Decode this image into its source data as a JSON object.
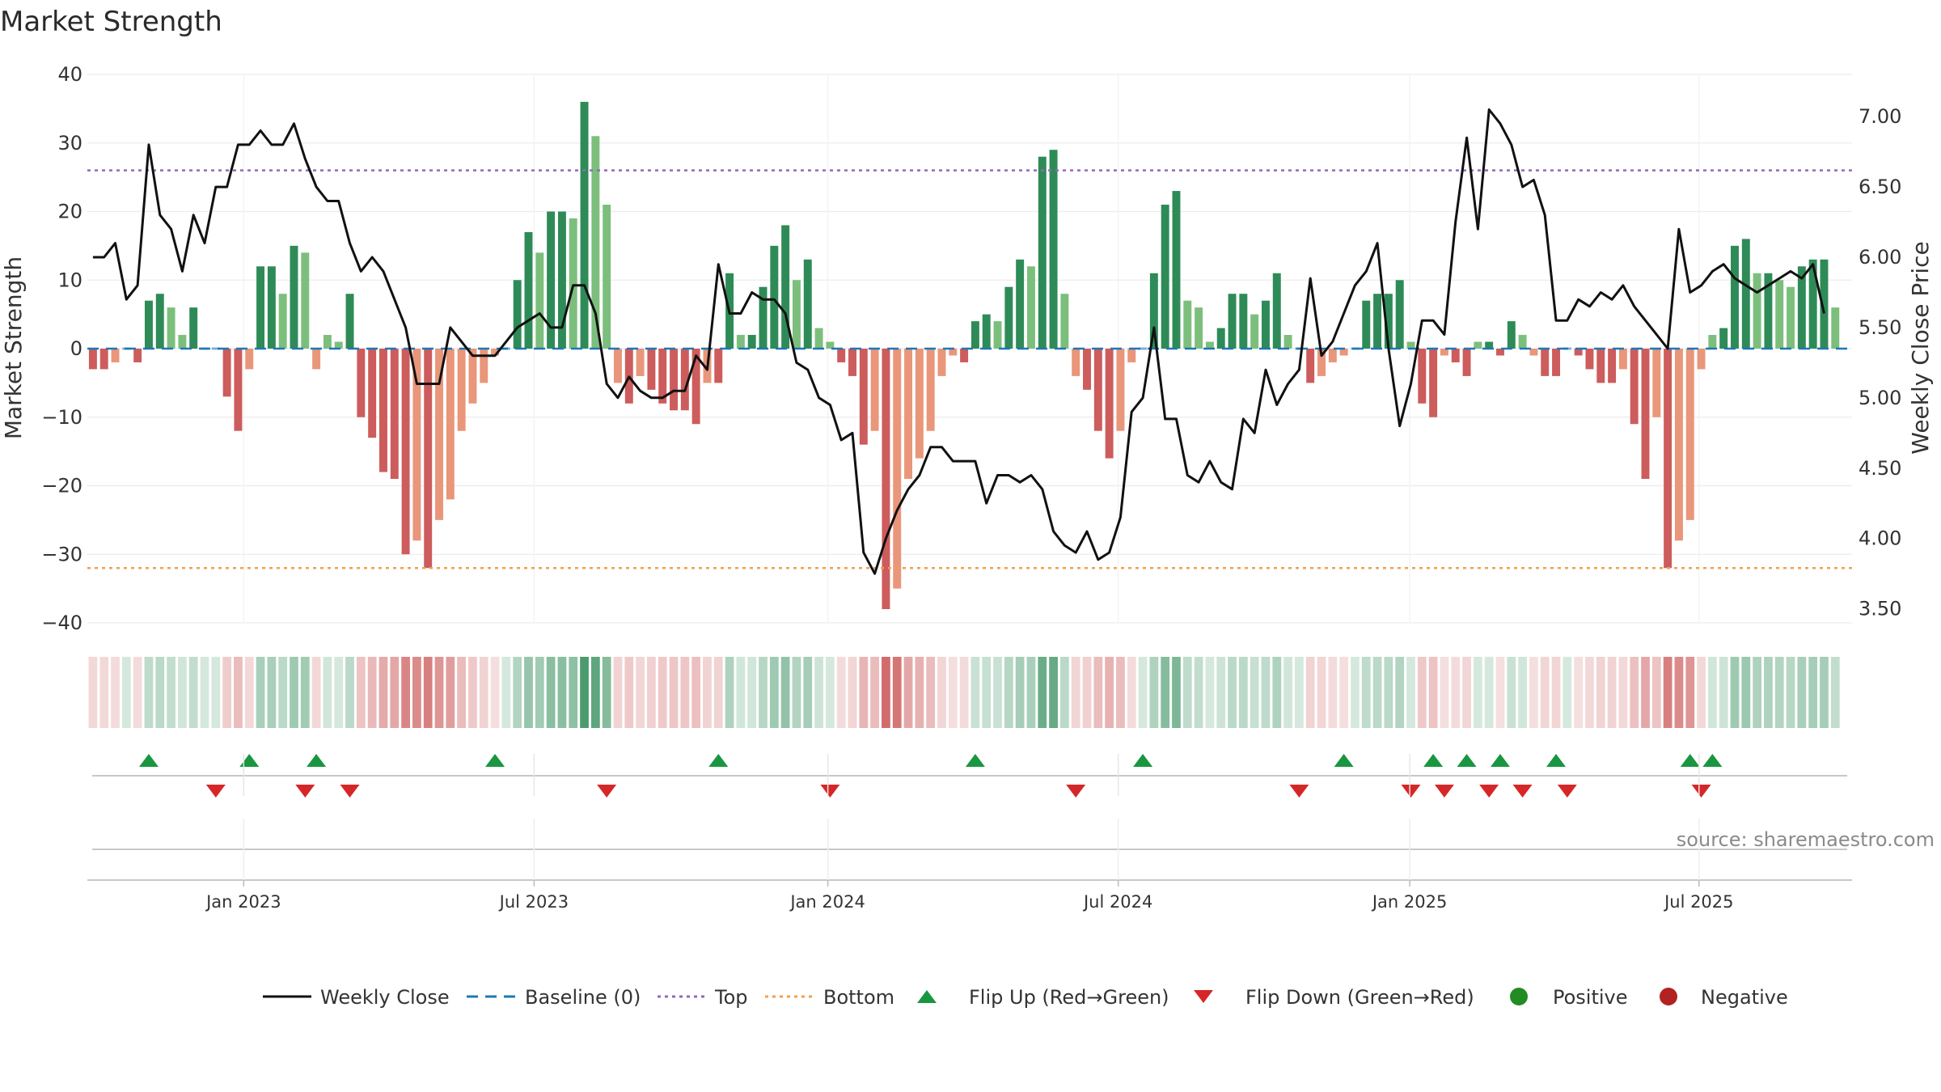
{
  "chart_data": {
    "type": "bar",
    "title": "Market Strength",
    "ylabel": "Market Strength",
    "y2label": "Weekly Close Price",
    "ylim": [
      -40,
      40
    ],
    "y2lim": [
      3.4,
      7.3
    ],
    "yticks": [
      40,
      30,
      20,
      10,
      0,
      -10,
      -20,
      -30,
      -40
    ],
    "y2ticks": [
      "7.00",
      "6.50",
      "6.00",
      "5.50",
      "5.00",
      "4.50",
      "4.00",
      "3.50"
    ],
    "y2tick_values": [
      7.0,
      6.5,
      6.0,
      5.5,
      5.0,
      4.5,
      4.0,
      3.5
    ],
    "x_start": "2022-09-25",
    "weeks": 158,
    "xticks": [
      "Jan 2023",
      "Jul 2023",
      "Jan 2024",
      "Jul 2024",
      "Jan 2025",
      "Jul 2025"
    ],
    "xtick_weeks": [
      14,
      40,
      66.3,
      92.3,
      118.4,
      144.3
    ],
    "top_level": 26,
    "bottom_level": -32,
    "strength": [
      -3,
      -3,
      -2,
      0,
      -2,
      7,
      8,
      6,
      2,
      6,
      0,
      0,
      -7,
      -12,
      -3,
      12,
      12,
      8,
      15,
      14,
      -3,
      2,
      1,
      8,
      -10,
      -13,
      -18,
      -19,
      -30,
      -28,
      -32,
      -25,
      -22,
      -12,
      -8,
      -5,
      -1,
      0,
      10,
      17,
      14,
      20,
      20,
      19,
      36,
      31,
      21,
      -5,
      -8,
      -4,
      -6,
      -8,
      -9,
      -9,
      -11,
      -5,
      -5,
      11,
      2,
      2,
      9,
      15,
      18,
      10,
      13,
      3,
      1,
      -2,
      -4,
      -14,
      -12,
      -38,
      -35,
      -19,
      -16,
      -12,
      -4,
      -1,
      -2,
      4,
      5,
      4,
      9,
      13,
      12,
      28,
      29,
      8,
      -4,
      -6,
      -12,
      -16,
      -12,
      -2,
      0,
      11,
      21,
      23,
      7,
      6,
      1,
      3,
      8,
      8,
      5,
      7,
      11,
      2,
      0,
      -5,
      -4,
      -2,
      -1,
      0,
      7,
      8,
      8,
      10,
      1,
      -8,
      -10,
      -1,
      -2,
      -4,
      1,
      1,
      -1,
      4,
      2,
      -1,
      -4,
      -4,
      0,
      -1,
      -3,
      -5,
      -5,
      -3,
      -11,
      -19,
      -10,
      -32,
      -28,
      -25,
      -3,
      2,
      3,
      15,
      16,
      11,
      11,
      10,
      9,
      12,
      13,
      13,
      6
    ],
    "close": [
      6.0,
      6.0,
      6.1,
      5.7,
      5.8,
      6.8,
      6.3,
      6.2,
      5.9,
      6.3,
      6.1,
      6.5,
      6.5,
      6.8,
      6.8,
      6.9,
      6.8,
      6.8,
      6.95,
      6.7,
      6.5,
      6.4,
      6.4,
      6.1,
      5.9,
      6.0,
      5.9,
      5.7,
      5.5,
      5.1,
      5.1,
      5.1,
      5.5,
      5.4,
      5.3,
      5.3,
      5.3,
      5.4,
      5.5,
      5.55,
      5.6,
      5.5,
      5.5,
      5.8,
      5.8,
      5.6,
      5.1,
      5.0,
      5.15,
      5.05,
      5.0,
      5.0,
      5.05,
      5.05,
      5.3,
      5.2,
      5.95,
      5.6,
      5.6,
      5.75,
      5.7,
      5.7,
      5.6,
      5.25,
      5.2,
      5.0,
      4.95,
      4.7,
      4.75,
      3.9,
      3.75,
      4.0,
      4.2,
      4.35,
      4.45,
      4.65,
      4.65,
      4.55,
      4.55,
      4.55,
      4.25,
      4.45,
      4.45,
      4.4,
      4.45,
      4.35,
      4.05,
      3.95,
      3.9,
      4.05,
      3.85,
      3.9,
      4.15,
      4.9,
      5.0,
      5.5,
      4.85,
      4.85,
      4.45,
      4.4,
      4.55,
      4.4,
      4.35,
      4.85,
      4.75,
      5.2,
      4.95,
      5.1,
      5.2,
      5.85,
      5.3,
      5.4,
      5.6,
      5.8,
      5.9,
      6.1,
      5.35,
      4.8,
      5.1,
      5.55,
      5.55,
      5.45,
      6.25,
      6.85,
      6.2,
      7.05,
      6.95,
      6.8,
      6.5,
      6.55,
      6.3,
      5.55,
      5.55,
      5.7,
      5.65,
      5.75,
      5.7,
      5.8,
      5.65,
      5.55,
      5.45,
      5.35,
      6.2,
      5.75,
      5.8,
      5.9,
      5.95,
      5.85,
      5.8,
      5.75,
      5.8,
      5.85,
      5.9,
      5.85,
      5.95,
      5.6
    ],
    "flip_up_weeks": [
      5,
      14,
      20,
      36,
      56,
      79,
      94,
      112,
      120,
      123,
      126,
      131,
      143,
      145
    ],
    "flip_down_weeks": [
      11,
      19,
      23,
      46,
      66,
      88,
      108,
      118,
      121,
      125,
      128,
      132,
      144
    ],
    "legend": [
      "Weekly Close",
      "Baseline (0)",
      "Top",
      "Bottom",
      "Flip Up (Red→Green)",
      "Flip Down (Green→Red)",
      "Positive",
      "Negative"
    ],
    "annotation": "source: sharemaestro.com"
  },
  "colors": {
    "pos_strong": "#2e8b57",
    "pos_light": "#7cbf7c",
    "neg_strong": "#cd5c5c",
    "neg_light": "#e9967a",
    "close_line": "#111111",
    "baseline": "#1f77b4",
    "top_line": "#9467bd",
    "bottom_line": "#f0a050",
    "flip_up": "#1a9641",
    "flip_down": "#d62728",
    "positive": "#228b22",
    "negative": "#b22222"
  }
}
